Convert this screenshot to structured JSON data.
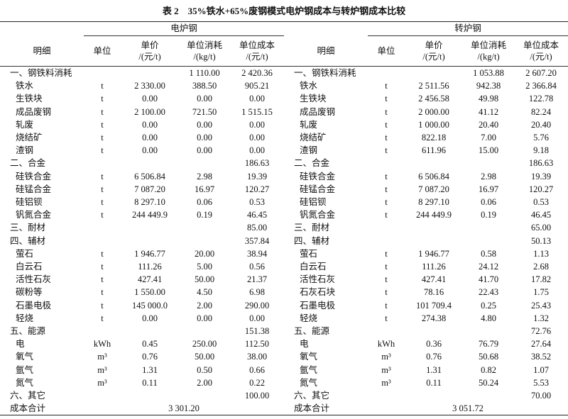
{
  "title": "表 2　35%铁水+65%废钢模式电炉钢成本与转炉钢成本比较",
  "table": {
    "groups": [
      "电炉钢",
      "转炉钢"
    ],
    "columns": [
      [
        "明细"
      ],
      [
        "单位"
      ],
      [
        "单价",
        "/(元/t)"
      ],
      [
        "单位消耗",
        "/(kg/t)"
      ],
      [
        "单位成本",
        "/(元/t)"
      ]
    ],
    "rows": [
      [
        "一、钢铁料消耗",
        null,
        null,
        "1 110.00",
        "2 420.36",
        "一、钢铁料消耗",
        null,
        null,
        "1 053.88",
        "2 607.20"
      ],
      [
        "铁水",
        "t",
        "2 330.00",
        "388.50",
        "905.21",
        "铁水",
        "t",
        "2 511.56",
        "942.38",
        "2 366.84"
      ],
      [
        "生铁块",
        "t",
        "0.00",
        "0.00",
        "0.00",
        "生铁块",
        "t",
        "2 456.58",
        "49.98",
        "122.78"
      ],
      [
        "成品废钢",
        "t",
        "2 100.00",
        "721.50",
        "1 515.15",
        "成品废钢",
        "t",
        "2 000.00",
        "41.12",
        "82.24"
      ],
      [
        "轧废",
        "t",
        "0.00",
        "0.00",
        "0.00",
        "轧废",
        "t",
        "1 000.00",
        "20.40",
        "20.40"
      ],
      [
        "烧结矿",
        "t",
        "0.00",
        "0.00",
        "0.00",
        "烧结矿",
        "t",
        "822.18",
        "7.00",
        "5.76"
      ],
      [
        "渣钢",
        "t",
        "0.00",
        "0.00",
        "0.00",
        "渣钢",
        "t",
        "611.96",
        "15.00",
        "9.18"
      ],
      [
        "二、合金",
        null,
        null,
        null,
        "186.63",
        "二、合金",
        null,
        null,
        null,
        "186.63"
      ],
      [
        "硅铁合金",
        "t",
        "6 506.84",
        "2.98",
        "19.39",
        "硅铁合金",
        "t",
        "6 506.84",
        "2.98",
        "19.39"
      ],
      [
        "硅锰合金",
        "t",
        "7 087.20",
        "16.97",
        "120.27",
        "硅锰合金",
        "t",
        "7 087.20",
        "16.97",
        "120.27"
      ],
      [
        "硅铝钡",
        "t",
        "8 297.10",
        "0.06",
        "0.53",
        "硅铝钡",
        "t",
        "8 297.10",
        "0.06",
        "0.53"
      ],
      [
        "钒氮合金",
        "t",
        "244 449.9",
        "0.19",
        "46.45",
        "钒氮合金",
        "t",
        "244 449.9",
        "0.19",
        "46.45"
      ],
      [
        "三、耐材",
        null,
        null,
        null,
        "85.00",
        "三、耐材",
        null,
        null,
        null,
        "65.00"
      ],
      [
        "四、辅材",
        null,
        null,
        null,
        "357.84",
        "四、辅材",
        null,
        null,
        null,
        "50.13"
      ],
      [
        "萤石",
        "t",
        "1 946.77",
        "20.00",
        "38.94",
        "萤石",
        "t",
        "1 946.77",
        "0.58",
        "1.13"
      ],
      [
        "白云石",
        "t",
        "111.26",
        "5.00",
        "0.56",
        "白云石",
        "t",
        "111.26",
        "24.12",
        "2.68"
      ],
      [
        "活性石灰",
        "t",
        "427.41",
        "50.00",
        "21.37",
        "活性石灰",
        "t",
        "427.41",
        "41.70",
        "17.82"
      ],
      [
        "碳粉等",
        "t",
        "1 550.00",
        "4.50",
        "6.98",
        "石灰石块",
        "t",
        "78.16",
        "22.43",
        "1.75"
      ],
      [
        "石墨电极",
        "t",
        "145 000.0",
        "2.00",
        "290.00",
        "石墨电极",
        "t",
        "101 709.4",
        "0.25",
        "25.43"
      ],
      [
        "轻烧",
        "t",
        "0.00",
        "0.00",
        "0.00",
        "轻烧",
        "t",
        "274.38",
        "4.80",
        "1.32"
      ],
      [
        "五、能源",
        null,
        null,
        null,
        "151.38",
        "五、能源",
        null,
        null,
        null,
        "72.76"
      ],
      [
        "电",
        "kWh",
        "0.45",
        "250.00",
        "112.50",
        "电",
        "kWh",
        "0.36",
        "76.79",
        "27.64"
      ],
      [
        "氧气",
        "m³",
        "0.76",
        "50.00",
        "38.00",
        "氧气",
        "m³",
        "0.76",
        "50.68",
        "38.52"
      ],
      [
        "氩气",
        "m³",
        "1.31",
        "0.50",
        "0.66",
        "氩气",
        "m³",
        "1.31",
        "0.82",
        "1.07"
      ],
      [
        "氮气",
        "m³",
        "0.11",
        "2.00",
        "0.22",
        "氮气",
        "m³",
        "0.11",
        "50.24",
        "5.53"
      ],
      [
        "六、其它",
        null,
        null,
        null,
        "100.00",
        "六、其它",
        null,
        null,
        null,
        "70.00"
      ]
    ],
    "total": [
      "成本合计",
      "3 301.20",
      "成本合计",
      "3 051.72"
    ]
  }
}
